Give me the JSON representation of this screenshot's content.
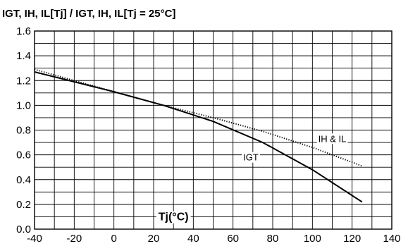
{
  "chart_data": {
    "type": "line",
    "title": "IGT, IH, IL[Tj] / IGT, IH, IL[Tj = 25°C]",
    "xlabel": "Tj(°C)",
    "ylabel": "",
    "xlim": [
      -40,
      140
    ],
    "ylim": [
      0.0,
      1.6
    ],
    "xticks": [
      "-40",
      "-20",
      "0",
      "20",
      "40",
      "60",
      "80",
      "100",
      "120",
      "140"
    ],
    "yticks": [
      "0.0",
      "0.2",
      "0.4",
      "0.6",
      "0.8",
      "1.0",
      "1.2",
      "1.4",
      "1.6"
    ],
    "grid": true,
    "series": [
      {
        "name": "IGT",
        "style": "solid",
        "x": [
          -40,
          -20,
          0,
          25,
          50,
          75,
          100,
          125
        ],
        "y": [
          1.27,
          1.19,
          1.11,
          1.0,
          0.87,
          0.7,
          0.48,
          0.22
        ]
      },
      {
        "name": "IH & IL",
        "style": "dotted",
        "x": [
          -40,
          -20,
          0,
          25,
          50,
          75,
          100,
          125
        ],
        "y": [
          1.29,
          1.2,
          1.11,
          1.0,
          0.9,
          0.79,
          0.66,
          0.51
        ]
      }
    ],
    "annotations": [
      {
        "text": "IGT",
        "x": 69,
        "y": 0.58
      },
      {
        "text": "IH & IL",
        "x": 110,
        "y": 0.73
      }
    ]
  },
  "colors": {
    "line": "#000000",
    "grid": "#000000",
    "background": "#ffffff"
  }
}
